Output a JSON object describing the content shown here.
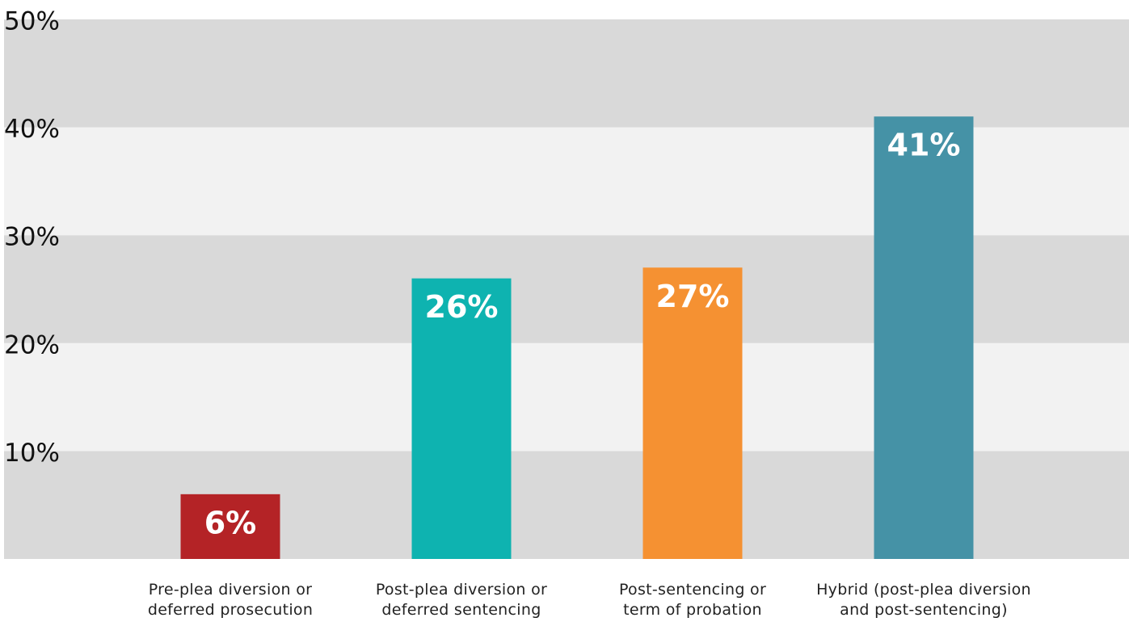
{
  "chart_data": {
    "type": "bar",
    "categories": [
      "Pre-plea diversion or\ndeferred prosecution",
      "Post-plea diversion or\ndeferred sentencing",
      "Post-sentencing or\nterm of probation",
      "Hybrid (post-plea diversion\nand post-sentencing)"
    ],
    "values": [
      6,
      26,
      27,
      41
    ],
    "value_labels": [
      "6%",
      "26%",
      "27%",
      "41%"
    ],
    "colors": [
      "#b42326",
      "#0eb3b0",
      "#f59132",
      "#4592a6"
    ],
    "ylim": [
      0,
      50
    ],
    "yticks": [
      {
        "value": 10,
        "label": "10%"
      },
      {
        "value": 20,
        "label": "20%"
      },
      {
        "value": 30,
        "label": "30%"
      },
      {
        "value": 40,
        "label": "40%"
      },
      {
        "value": 50,
        "label": "50%"
      }
    ],
    "grid": true
  }
}
